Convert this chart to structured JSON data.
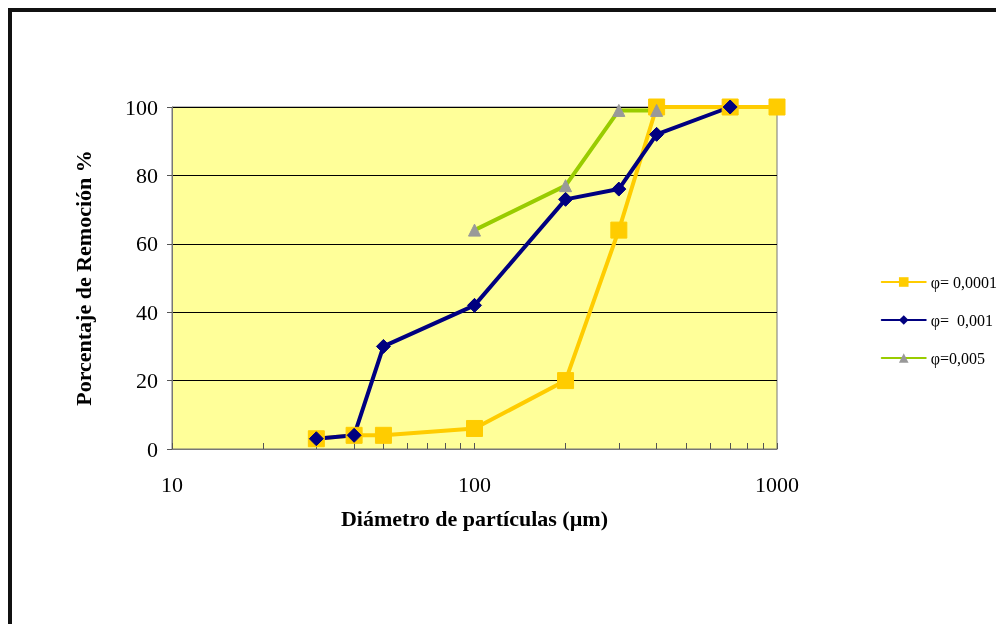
{
  "chart_data": {
    "type": "line",
    "xlabel": "Diámetro de partículas (µm)",
    "ylabel": "Porcentaje de Remoción %",
    "log": "x",
    "grid": "y",
    "legend": "right",
    "line_style": "solid",
    "xlim": [
      10,
      1000
    ],
    "xticks": [
      10,
      {
        "value": 20,
        "label": null
      },
      {
        "value": 30,
        "label": null
      },
      {
        "value": 40,
        "label": null
      },
      {
        "value": 50,
        "label": null
      },
      {
        "value": 60,
        "label": null
      },
      {
        "value": 70,
        "label": null
      },
      {
        "value": 80,
        "label": null
      },
      {
        "value": 90,
        "label": null
      },
      100,
      {
        "value": 200,
        "label": null
      },
      {
        "value": 300,
        "label": null
      },
      {
        "value": 400,
        "label": null
      },
      {
        "value": 500,
        "label": null
      },
      {
        "value": 600,
        "label": null
      },
      {
        "value": 700,
        "label": null
      },
      {
        "value": 800,
        "label": null
      },
      {
        "value": 900,
        "label": null
      },
      1000
    ],
    "ylim": [
      0,
      100
    ],
    "yticks": [
      0,
      20,
      40,
      60,
      80,
      100
    ],
    "series": [
      {
        "name": "φ= 0,0001",
        "color": "#ffcc00",
        "marker": "square",
        "x": [
          30,
          40,
          50,
          100,
          200,
          300,
          400,
          700,
          1000
        ],
        "values": [
          3,
          4,
          4,
          6,
          20,
          64,
          100,
          100,
          100
        ]
      },
      {
        "name": "φ=  0,001",
        "color": "#000080",
        "marker": "diamond",
        "x": [
          30,
          40,
          50,
          100,
          200,
          300,
          400,
          700
        ],
        "values": [
          3,
          4,
          30,
          42,
          73,
          76,
          92,
          100
        ]
      },
      {
        "name": "φ=0,005",
        "color": "#99cc00",
        "marker": "triangle",
        "x": [
          100,
          200,
          300,
          400
        ],
        "values": [
          64,
          77,
          99,
          99
        ]
      }
    ]
  }
}
